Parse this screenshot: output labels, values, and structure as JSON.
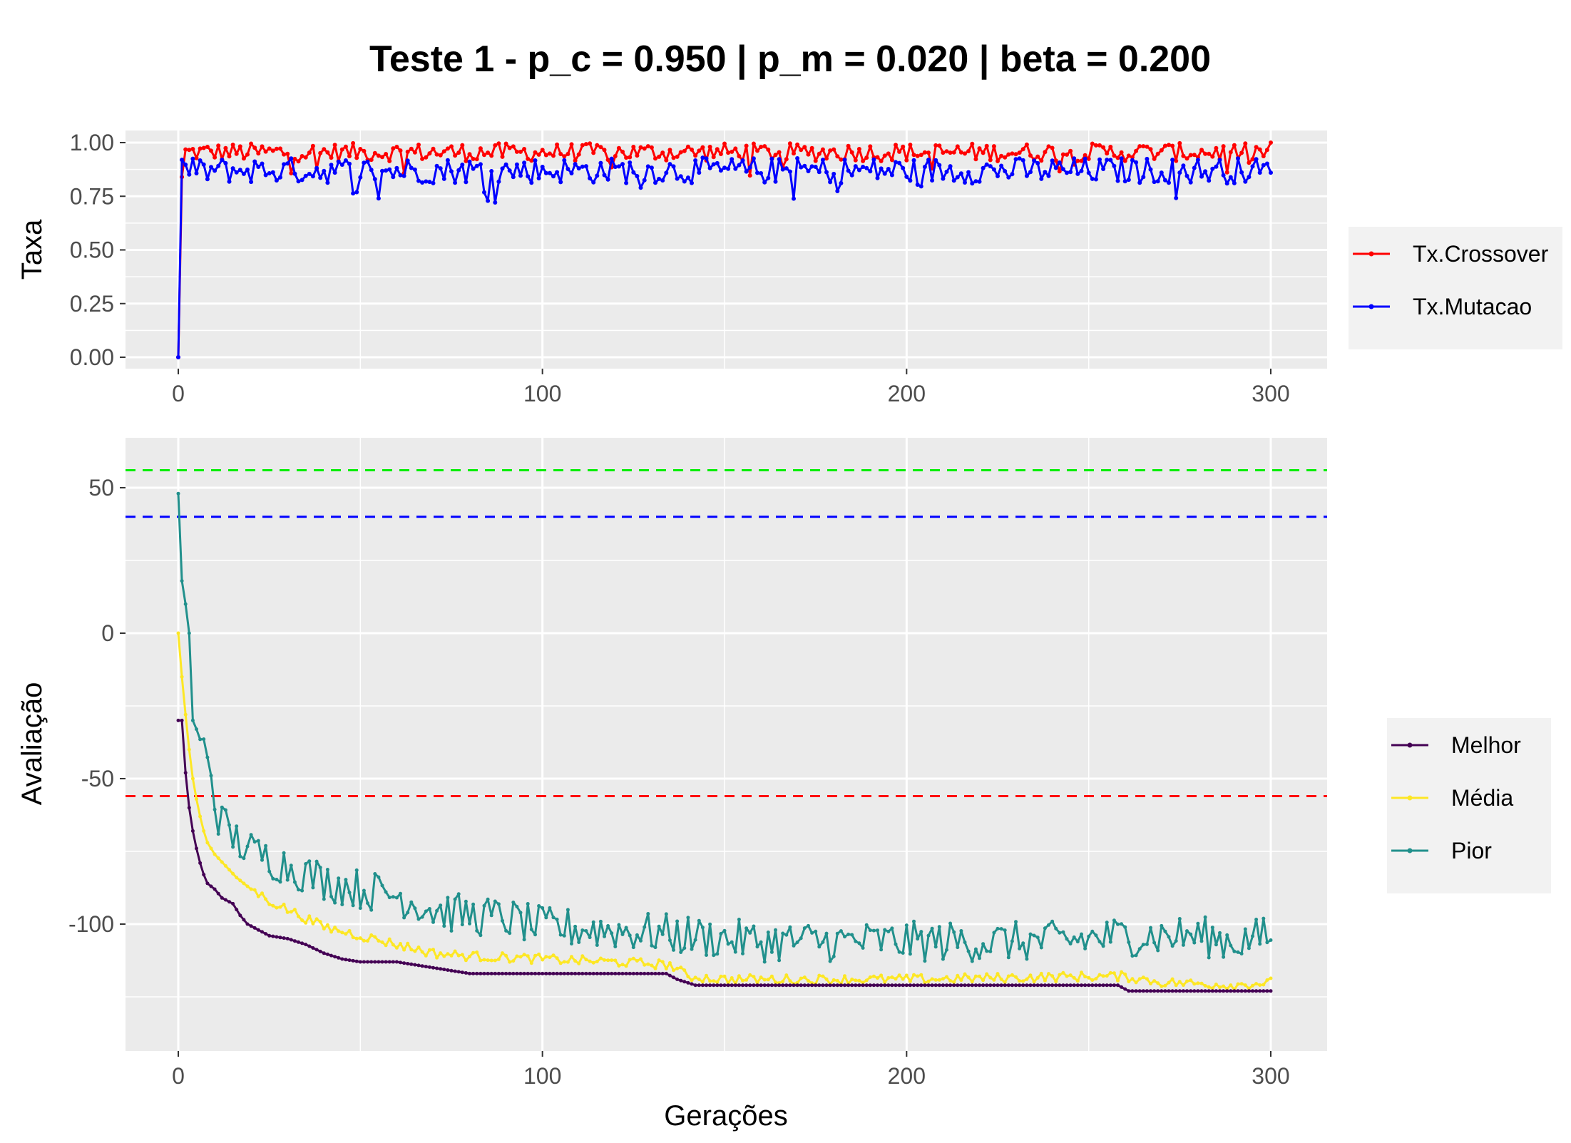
{
  "chart_data": {
    "type": "line",
    "title": "Teste 1 - p_c = 0.950 | p_m = 0.020 | beta = 0.200",
    "panels": [
      {
        "id": "taxa",
        "ylabel": "Taxa",
        "xlabel": "",
        "xlim": [
          0,
          300
        ],
        "ylim": [
          0,
          1
        ],
        "x_ticks": [
          0,
          100,
          200,
          300
        ],
        "y_ticks": [
          "0.00",
          "0.25",
          "0.50",
          "0.75",
          "1.00"
        ],
        "legend_position": "right",
        "series": [
          {
            "name": "Tx.Crossover",
            "color": "#ff0000",
            "start": [
              0,
              0.0
            ],
            "jump_to": [
              1,
              0.84
            ],
            "mean": 0.955,
            "amplitude": 0.035,
            "min": 0.84,
            "max": 1.0,
            "end": [
              300,
              1.0
            ]
          },
          {
            "name": "Tx.Mutacao",
            "color": "#0000ff",
            "start": [
              0,
              0.0
            ],
            "jump_to": [
              1,
              0.92
            ],
            "mean": 0.87,
            "amplitude": 0.05,
            "min": 0.72,
            "max": 0.97,
            "end": [
              300,
              0.86
            ]
          }
        ]
      },
      {
        "id": "avaliacao",
        "ylabel": "Avaliação",
        "xlabel": "Gerações",
        "xlim": [
          0,
          300
        ],
        "ylim": [
          -136,
          63
        ],
        "x_ticks": [
          0,
          100,
          200,
          300
        ],
        "y_ticks": [
          -100,
          -50,
          0,
          50
        ],
        "legend_position": "right",
        "reference_lines": [
          {
            "y": 56,
            "color": "#00ee00",
            "style": "dashed"
          },
          {
            "y": 40,
            "color": "#0000ff",
            "style": "dashed"
          },
          {
            "y": -56,
            "color": "#ff0000",
            "style": "dashed"
          }
        ],
        "series": [
          {
            "name": "Melhor",
            "color": "#440154",
            "key_points": [
              [
                0,
                -30
              ],
              [
                1,
                -30
              ],
              [
                2,
                -48
              ],
              [
                3,
                -60
              ],
              [
                4,
                -68
              ],
              [
                5,
                -74
              ],
              [
                6,
                -79
              ],
              [
                7,
                -83
              ],
              [
                8,
                -86
              ],
              [
                10,
                -88
              ],
              [
                12,
                -91
              ],
              [
                15,
                -93
              ],
              [
                17,
                -97
              ],
              [
                19,
                -100
              ],
              [
                22,
                -102
              ],
              [
                25,
                -104
              ],
              [
                30,
                -105
              ],
              [
                35,
                -107
              ],
              [
                40,
                -110
              ],
              [
                45,
                -112
              ],
              [
                50,
                -113
              ],
              [
                60,
                -113
              ],
              [
                70,
                -115
              ],
              [
                80,
                -117
              ],
              [
                100,
                -117
              ],
              [
                120,
                -117
              ],
              [
                134,
                -117
              ],
              [
                137,
                -119
              ],
              [
                142,
                -121
              ],
              [
                200,
                -121
              ],
              [
                258,
                -121
              ],
              [
                261,
                -123
              ],
              [
                300,
                -123
              ]
            ]
          },
          {
            "name": "Média",
            "color": "#fde725",
            "key_points": [
              [
                0,
                0
              ],
              [
                1,
                -15
              ],
              [
                2,
                -28
              ],
              [
                3,
                -40
              ],
              [
                4,
                -50
              ],
              [
                5,
                -57
              ],
              [
                6,
                -63
              ],
              [
                7,
                -68
              ],
              [
                8,
                -72
              ],
              [
                10,
                -76
              ],
              [
                13,
                -80
              ],
              [
                16,
                -84
              ],
              [
                20,
                -88
              ],
              [
                25,
                -92
              ],
              [
                30,
                -95
              ],
              [
                35,
                -98
              ],
              [
                40,
                -101
              ],
              [
                50,
                -104
              ],
              [
                60,
                -107
              ],
              [
                70,
                -110
              ],
              [
                80,
                -111
              ],
              [
                100,
                -112
              ],
              [
                120,
                -113
              ],
              [
                135,
                -114
              ],
              [
                140,
                -118
              ],
              [
                150,
                -119
              ],
              [
                200,
                -119
              ],
              [
                250,
                -118
              ],
              [
                260,
                -118
              ],
              [
                270,
                -120
              ],
              [
                290,
                -121
              ],
              [
                300,
                -120
              ]
            ]
          },
          {
            "name": "Pior",
            "color": "#21908c",
            "key_points": [
              [
                0,
                48
              ],
              [
                1,
                18
              ],
              [
                2,
                10
              ],
              [
                3,
                0
              ],
              [
                4,
                -30
              ],
              [
                5,
                -33
              ],
              [
                7,
                -40
              ],
              [
                9,
                -45
              ],
              [
                10,
                -60
              ],
              [
                12,
                -65
              ],
              [
                15,
                -70
              ],
              [
                20,
                -75
              ],
              [
                30,
                -80
              ],
              [
                40,
                -85
              ],
              [
                50,
                -88
              ],
              [
                60,
                -90
              ],
              [
                70,
                -95
              ],
              [
                80,
                -97
              ],
              [
                90,
                -98
              ],
              [
                100,
                -101
              ],
              [
                120,
                -102
              ],
              [
                140,
                -104
              ],
              [
                160,
                -106
              ],
              [
                180,
                -106
              ],
              [
                200,
                -106
              ],
              [
                220,
                -106
              ],
              [
                240,
                -106
              ],
              [
                260,
                -104
              ],
              [
                280,
                -104
              ],
              [
                290,
                -106
              ],
              [
                300,
                -104
              ]
            ]
          }
        ]
      }
    ]
  }
}
